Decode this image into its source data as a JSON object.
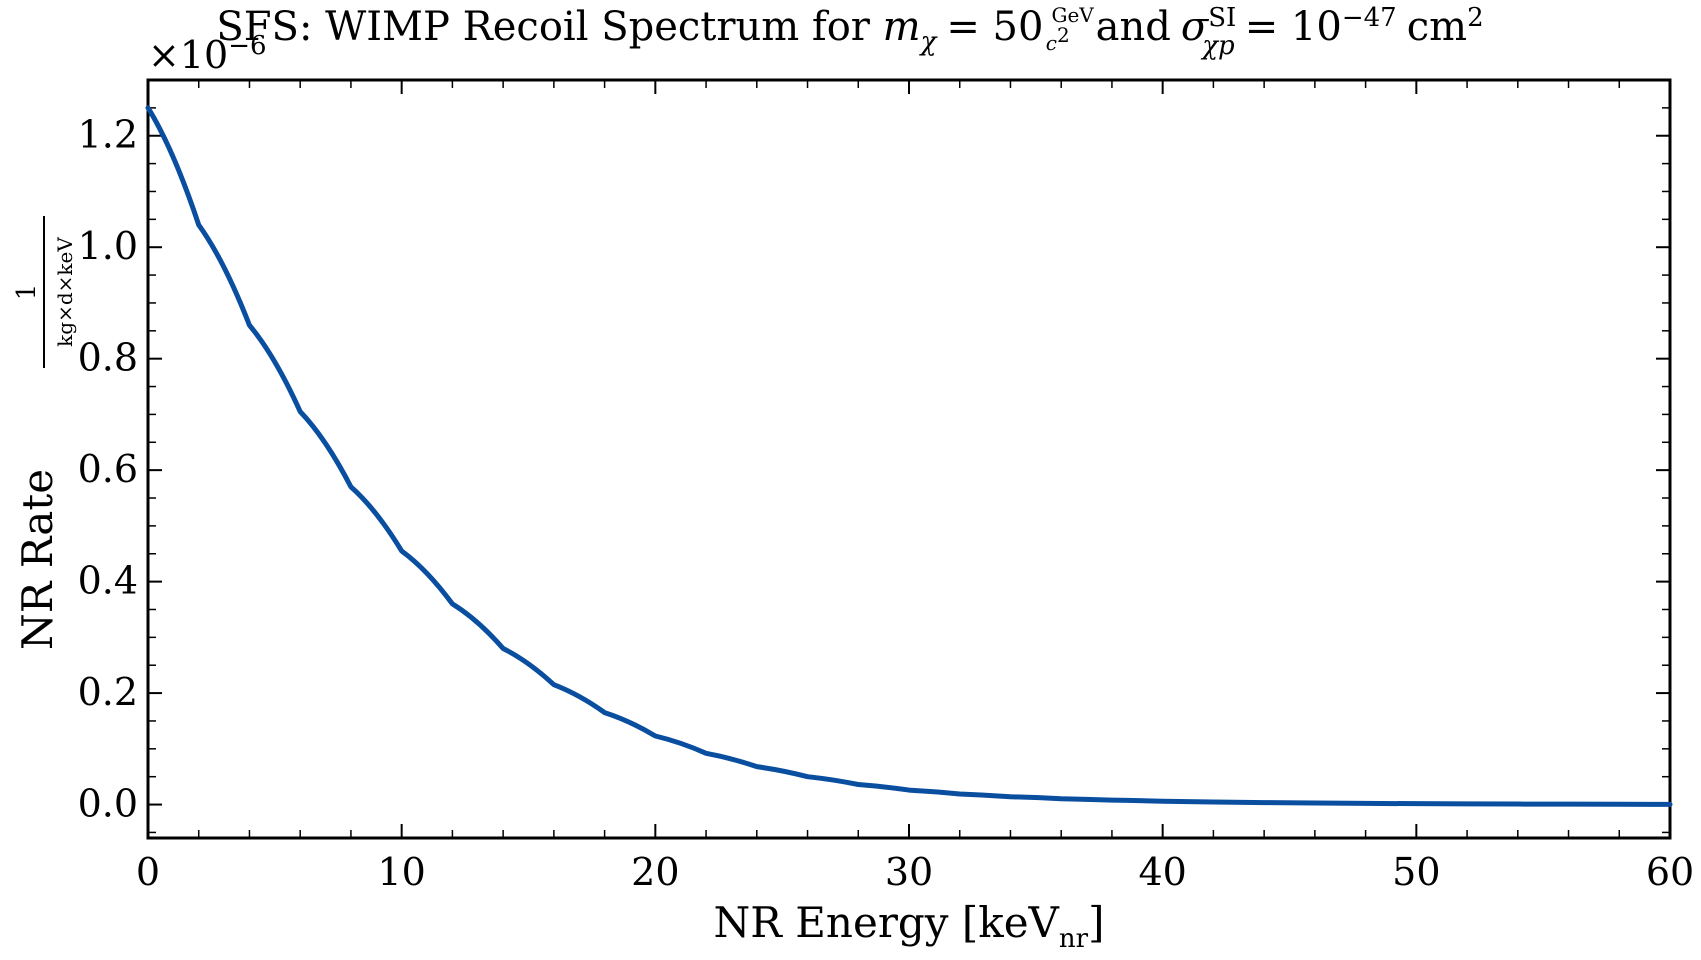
{
  "chart_data": {
    "type": "line",
    "title": {
      "prefix": "SFS: WIMP Recoil Spectrum for ",
      "mass_symbol": "m",
      "mass_sub": "χ",
      "eq1": "= 50",
      "unit_num": "GeV",
      "unit_den": "c",
      "unit_den_sup": "2",
      "and": "and",
      "sigma": "σ",
      "sigma_sup": "SI",
      "sigma_sub": "χp",
      "eq2": "= 10",
      "exp": "−47",
      "cm": "cm",
      "cm_sup": "2"
    },
    "xlabel": {
      "main": "NR Energy [keV",
      "sub": "nr",
      "close": "]"
    },
    "ylabel": {
      "main": "NR Rate",
      "frac_num": "1",
      "frac_den": "kg×d×keV"
    },
    "offset_text": "×10",
    "offset_exp": "−6",
    "xlim": [
      0,
      60
    ],
    "ylim": [
      -0.06,
      1.3
    ],
    "x_ticks": [
      0,
      10,
      20,
      30,
      40,
      50,
      60
    ],
    "x_tick_labels": [
      "0",
      "10",
      "20",
      "30",
      "40",
      "50",
      "60"
    ],
    "y_ticks": [
      0.0,
      0.2,
      0.4,
      0.6,
      0.8,
      1.0,
      1.2
    ],
    "y_tick_labels": [
      "0.0",
      "0.2",
      "0.4",
      "0.6",
      "0.8",
      "1.0",
      "1.2"
    ],
    "line_color": "#0a4ea0",
    "grid": false,
    "series": [
      {
        "x": [
          0,
          2,
          4,
          6,
          8,
          10,
          12,
          14,
          16,
          18,
          20,
          22,
          24,
          26,
          28,
          30,
          32,
          34,
          36,
          38,
          40,
          42,
          44,
          46,
          48,
          50,
          52,
          54,
          56,
          58,
          60
        ],
        "y": [
          1.25,
          1.04,
          0.86,
          0.705,
          0.57,
          0.455,
          0.36,
          0.28,
          0.215,
          0.165,
          0.123,
          0.092,
          0.068,
          0.05,
          0.036,
          0.026,
          0.019,
          0.014,
          0.0105,
          0.008,
          0.006,
          0.0045,
          0.0035,
          0.0027,
          0.0021,
          0.0016,
          0.0012,
          0.0009,
          0.0007,
          0.0005,
          0.0004
        ]
      }
    ]
  }
}
